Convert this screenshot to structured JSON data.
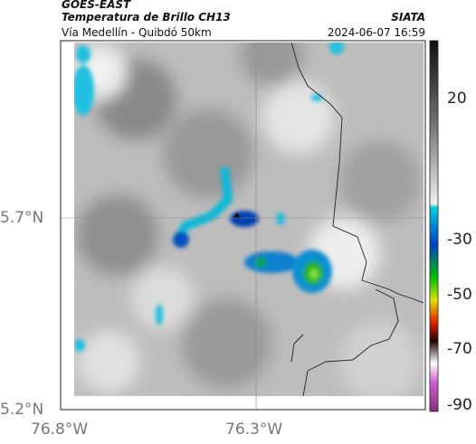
{
  "header": {
    "source": "GOES-EAST",
    "product": "Temperatura de Brillo CH13",
    "org": "SIATA",
    "route": "Vía Medellín - Quibdó 50km",
    "timestamp": "2024-06-07 16:59"
  },
  "axes": {
    "lat_labels": [
      "5.7°N",
      "5.2°N"
    ],
    "lon_labels": [
      "76.8°W",
      "76.3°W"
    ]
  },
  "colorbar": {
    "tick_labels": [
      "20",
      "-30",
      "-50",
      "-70",
      "-90"
    ]
  }
}
